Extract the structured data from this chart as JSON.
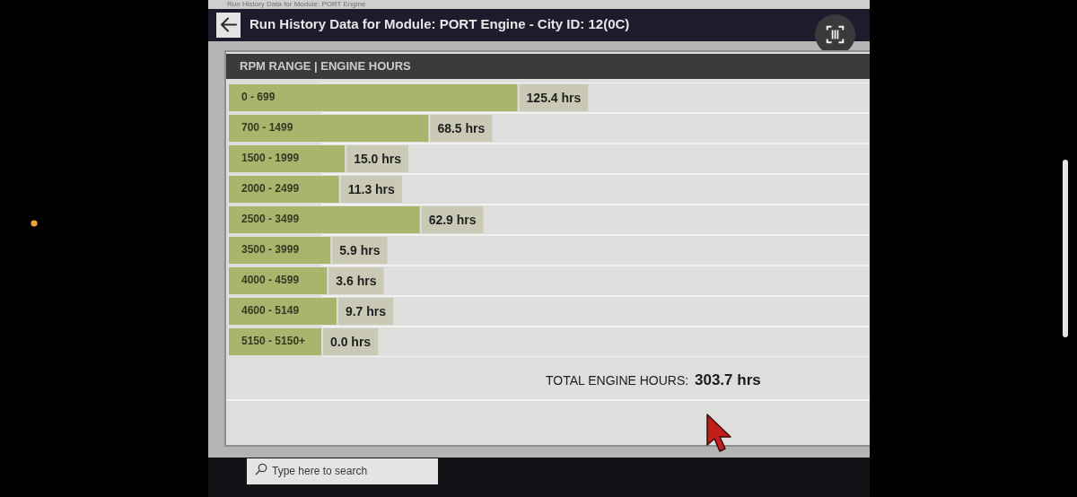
{
  "chart_data": {
    "type": "bar",
    "orientation": "horizontal",
    "title": "Run History Data for Module: PORT Engine - City ID: 12(0C)",
    "subtitle": "RPM RANGE | ENGINE HOURS",
    "categories": [
      "0 - 699",
      "700 - 1499",
      "1500 - 1999",
      "2000 - 2499",
      "2500 - 3499",
      "3500 - 3999",
      "4000 - 4599",
      "4600 - 5149",
      "5150 - 5150+"
    ],
    "values": [
      125.4,
      68.5,
      15.0,
      11.3,
      62.9,
      5.9,
      3.6,
      9.7,
      0.0
    ],
    "value_labels": [
      "125.4 hrs",
      "68.5 hrs",
      "15.0 hrs",
      "11.3 hrs",
      "62.9 hrs",
      "5.9 hrs",
      "3.6 hrs",
      "9.7 hrs",
      "0.0 hrs"
    ],
    "color": "#a9b46c",
    "xlim": [
      0,
      350
    ],
    "grid": "y",
    "tick_labels": "y",
    "annotations": [
      "Run History Data for Module: PORT Engine",
      "TOTAL ENGINE HOURS:",
      "303.7 hrs",
      "Type here to search"
    ]
  }
}
